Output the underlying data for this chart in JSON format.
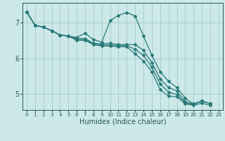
{
  "title": "",
  "xlabel": "Humidex (Indice chaleur)",
  "bg_color": "#cce8e8",
  "grid_color": "#aacfcf",
  "line_color": "#2a7a7a",
  "xlim": [
    -0.5,
    23.5
  ],
  "ylim": [
    4.55,
    7.55
  ],
  "yticks": [
    5,
    6,
    7
  ],
  "xticks": [
    0,
    1,
    2,
    3,
    4,
    5,
    6,
    7,
    8,
    9,
    10,
    11,
    12,
    13,
    14,
    15,
    16,
    17,
    18,
    19,
    20,
    21,
    22,
    23
  ],
  "lines": [
    {
      "x": [
        0,
        1,
        2,
        3,
        4,
        5,
        6,
        7,
        8,
        9,
        10,
        11,
        12,
        13,
        14,
        15,
        16,
        17,
        18,
        19,
        20,
        21,
        22
      ],
      "y": [
        7.3,
        6.92,
        6.87,
        6.77,
        6.65,
        6.62,
        6.58,
        6.7,
        6.52,
        6.45,
        7.05,
        7.2,
        7.28,
        7.18,
        6.62,
        6.08,
        5.62,
        5.35,
        5.18,
        4.88,
        4.72,
        4.8,
        4.73
      ]
    },
    {
      "x": [
        0,
        1,
        2,
        3,
        4,
        5,
        6,
        7,
        8,
        9,
        10,
        11,
        12,
        13,
        14,
        15,
        16,
        17,
        18,
        19,
        20,
        21,
        22
      ],
      "y": [
        7.3,
        6.92,
        6.87,
        6.77,
        6.65,
        6.62,
        6.55,
        6.55,
        6.42,
        6.4,
        6.42,
        6.38,
        6.38,
        6.38,
        6.22,
        5.88,
        5.42,
        5.18,
        5.08,
        4.78,
        4.72,
        4.8,
        4.73
      ]
    },
    {
      "x": [
        0,
        1,
        2,
        3,
        4,
        5,
        6,
        7,
        8,
        9,
        10,
        11,
        12,
        13,
        14,
        15,
        16,
        17,
        18,
        19,
        20,
        21,
        22
      ],
      "y": [
        7.3,
        6.92,
        6.87,
        6.77,
        6.65,
        6.62,
        6.52,
        6.52,
        6.4,
        6.37,
        6.37,
        6.35,
        6.35,
        6.25,
        6.08,
        5.75,
        5.28,
        5.05,
        4.98,
        4.75,
        4.7,
        4.8,
        4.73
      ]
    },
    {
      "x": [
        0,
        1,
        2,
        3,
        4,
        5,
        6,
        7,
        8,
        9,
        10,
        11,
        12,
        13,
        14,
        15,
        16,
        17,
        18,
        19,
        20,
        21,
        22
      ],
      "y": [
        7.3,
        6.92,
        6.87,
        6.77,
        6.65,
        6.62,
        6.5,
        6.5,
        6.38,
        6.34,
        6.34,
        6.32,
        6.32,
        6.12,
        5.92,
        5.62,
        5.12,
        4.94,
        4.92,
        4.72,
        4.68,
        4.74,
        4.68
      ]
    }
  ]
}
